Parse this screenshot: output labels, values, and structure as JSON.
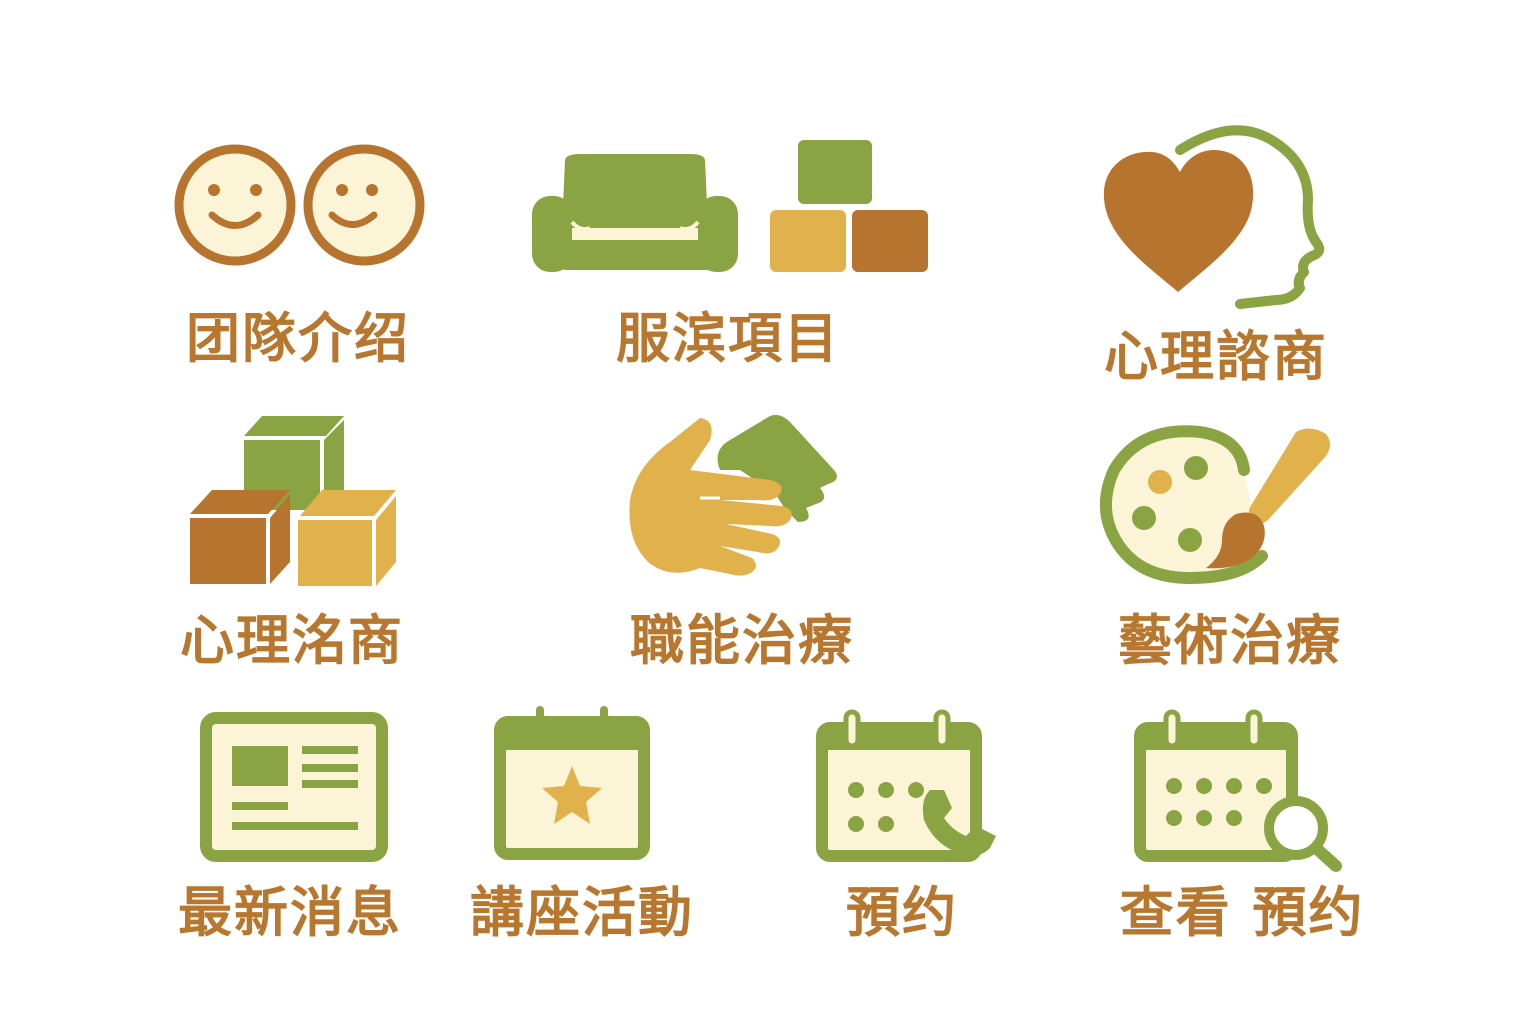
{
  "colors": {
    "green": "#8ba443",
    "brown": "#b6742e",
    "mustard": "#e1b14c",
    "cream": "#fbf4d6",
    "label": "#b7772f"
  },
  "tiles": [
    {
      "label": "团隊介绍",
      "icon": "two-smiley-faces-icon"
    },
    {
      "label": "服滨項目",
      "icon": "sofa-and-blocks-icon"
    },
    {
      "label": "心理諮商",
      "icon": "heart-and-head-icon"
    },
    {
      "label": "心理洺商",
      "icon": "stacked-cubes-icon"
    },
    {
      "label": "職能治療",
      "icon": "helping-hands-icon"
    },
    {
      "label": "藝術治療",
      "icon": "paint-palette-icon"
    },
    {
      "label": "最新消息",
      "icon": "news-card-icon"
    },
    {
      "label": "講座活動",
      "icon": "calendar-star-icon"
    },
    {
      "label": "預约",
      "icon": "calendar-phone-icon"
    },
    {
      "label": "查看 預约",
      "icon": "calendar-search-icon"
    }
  ]
}
